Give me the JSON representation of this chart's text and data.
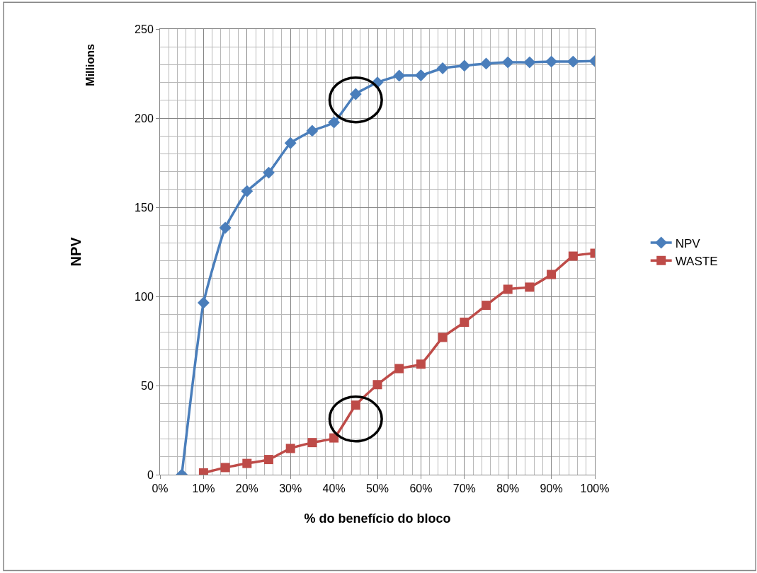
{
  "chart_data": {
    "type": "line",
    "xlabel": "% do benefício do bloco",
    "ylabel": "NPV",
    "annotations": [
      "Millions"
    ],
    "x": [
      5,
      10,
      15,
      20,
      25,
      30,
      35,
      40,
      45,
      50,
      55,
      60,
      65,
      70,
      75,
      80,
      85,
      90,
      95,
      100
    ],
    "series": [
      {
        "name": "NPV",
        "color": "#4a7ebb",
        "marker": "diamond",
        "values": [
          0,
          96.4,
          138.5,
          159,
          169.4,
          186,
          192.9,
          197.6,
          213.5,
          220,
          223.8,
          224,
          228,
          229.4,
          230.6,
          231.3,
          231.3,
          231.7,
          231.7,
          232
        ]
      },
      {
        "name": "WASTE",
        "color": "#be4b48",
        "marker": "square",
        "x": [
          10,
          15,
          20,
          25,
          30,
          35,
          40,
          45,
          50,
          55,
          60,
          65,
          70,
          75,
          80,
          85,
          90,
          95,
          100
        ],
        "values": [
          1,
          4,
          6.3,
          8.5,
          14.7,
          18,
          20.6,
          39,
          50.5,
          59.5,
          62,
          77,
          85.5,
          95,
          104,
          105.2,
          112.3,
          122.6,
          124.2
        ]
      }
    ],
    "xlim": [
      0,
      100
    ],
    "xticks": [
      {
        "value": 0,
        "label": "0%"
      },
      {
        "value": 10,
        "label": "10%"
      },
      {
        "value": 20,
        "label": "20%"
      },
      {
        "value": 30,
        "label": "30%"
      },
      {
        "value": 40,
        "label": "40%"
      },
      {
        "value": 50,
        "label": "50%"
      },
      {
        "value": 60,
        "label": "60%"
      },
      {
        "value": 70,
        "label": "70%"
      },
      {
        "value": 80,
        "label": "80%"
      },
      {
        "value": 90,
        "label": "90%"
      },
      {
        "value": 100,
        "label": "100%"
      }
    ],
    "ylim": [
      0,
      250
    ],
    "yticks": [
      0,
      50,
      100,
      150,
      200,
      250
    ],
    "grid": true,
    "legend": "right",
    "line_style": "solid"
  }
}
